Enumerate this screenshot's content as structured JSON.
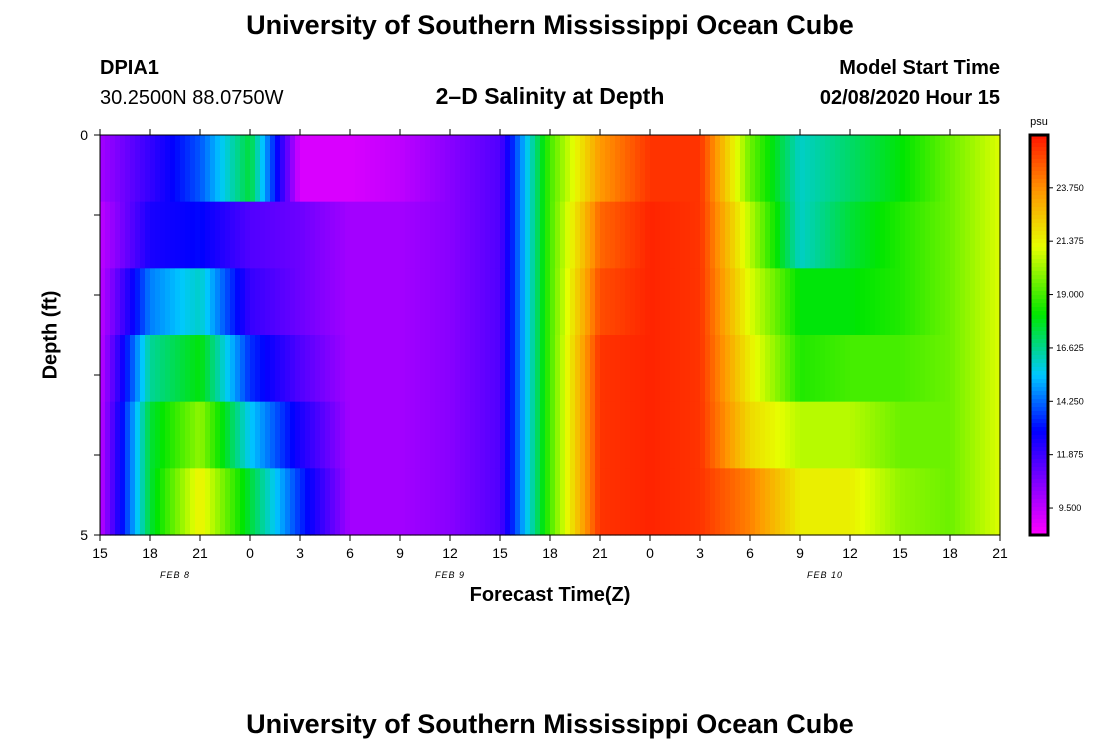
{
  "page": {
    "title": "University of Southern Mississippi Ocean Cube",
    "bottom_title": "University of Southern Mississippi Ocean Cube"
  },
  "station": {
    "id": "DPIA1",
    "coords": "30.2500N 88.0750W"
  },
  "model": {
    "label": "Model Start Time",
    "start": "02/08/2020 Hour 15"
  },
  "chart_data": {
    "type": "heatmap",
    "title": "2–D Salinity at Depth",
    "xlabel": "Forecast Time(Z)",
    "ylabel": "Depth (ft)",
    "ylim": [
      0,
      5
    ],
    "y_ticks": [
      "0",
      "5"
    ],
    "x_range_hours": [
      0,
      54
    ],
    "x_ticks": [
      "15",
      "18",
      "21",
      "0",
      "3",
      "6",
      "9",
      "12",
      "15",
      "18",
      "21",
      "0",
      "3",
      "6",
      "9",
      "12",
      "15",
      "18",
      "21"
    ],
    "date_labels": [
      {
        "text": "FEB 8",
        "hour": 4.5
      },
      {
        "text": "FEB 9",
        "hour": 21
      },
      {
        "text": "FEB 10",
        "hour": 43.5
      }
    ],
    "colorbar": {
      "unit": "psu",
      "vmin": 8.3,
      "vmax": 26.1,
      "ticks": [
        "23.750",
        "21.375",
        "19.000",
        "16.625",
        "14.250",
        "11.875",
        "9.500"
      ]
    },
    "depth_bins": [
      0.25,
      1.0,
      2.0,
      3.0,
      4.0,
      4.75
    ],
    "profile_hours": [
      0,
      3,
      6,
      9,
      12,
      15,
      18,
      21,
      24,
      27,
      30,
      33,
      36,
      39,
      42,
      45,
      48,
      51,
      54
    ],
    "salinity_profiles": [
      [
        10.0,
        9.5,
        9.5,
        9.5,
        9.5,
        9.5
      ],
      [
        12.0,
        12.5,
        14.5,
        16.5,
        17.5,
        17.5
      ],
      [
        14.0,
        13.0,
        16.0,
        18.0,
        20.0,
        21.5
      ],
      [
        17.5,
        11.5,
        12.0,
        13.5,
        15.5,
        17.5
      ],
      [
        9.0,
        11.0,
        11.0,
        11.5,
        12.5,
        13.5
      ],
      [
        9.0,
        10.0,
        10.0,
        10.0,
        10.0,
        10.0
      ],
      [
        9.5,
        10.0,
        10.0,
        10.0,
        10.0,
        10.0
      ],
      [
        10.5,
        10.5,
        10.5,
        10.5,
        10.5,
        10.5
      ],
      [
        11.5,
        11.5,
        11.5,
        11.5,
        11.5,
        11.5
      ],
      [
        19.0,
        19.0,
        19.0,
        19.0,
        19.0,
        19.0
      ],
      [
        23.5,
        24.5,
        25.0,
        25.5,
        25.5,
        25.5
      ],
      [
        25.5,
        25.8,
        25.8,
        25.8,
        25.8,
        25.8
      ],
      [
        25.5,
        25.5,
        25.5,
        25.5,
        25.5,
        25.5
      ],
      [
        19.5,
        20.5,
        21.0,
        21.5,
        22.0,
        24.0
      ],
      [
        16.0,
        16.0,
        18.0,
        18.5,
        20.5,
        21.5
      ],
      [
        17.0,
        17.5,
        18.0,
        19.0,
        20.5,
        21.5
      ],
      [
        18.0,
        18.5,
        18.5,
        19.0,
        19.5,
        20.0
      ],
      [
        19.5,
        19.5,
        19.5,
        19.5,
        19.5,
        19.5
      ],
      [
        21.0,
        21.0,
        21.0,
        21.0,
        21.0,
        21.0
      ]
    ]
  }
}
